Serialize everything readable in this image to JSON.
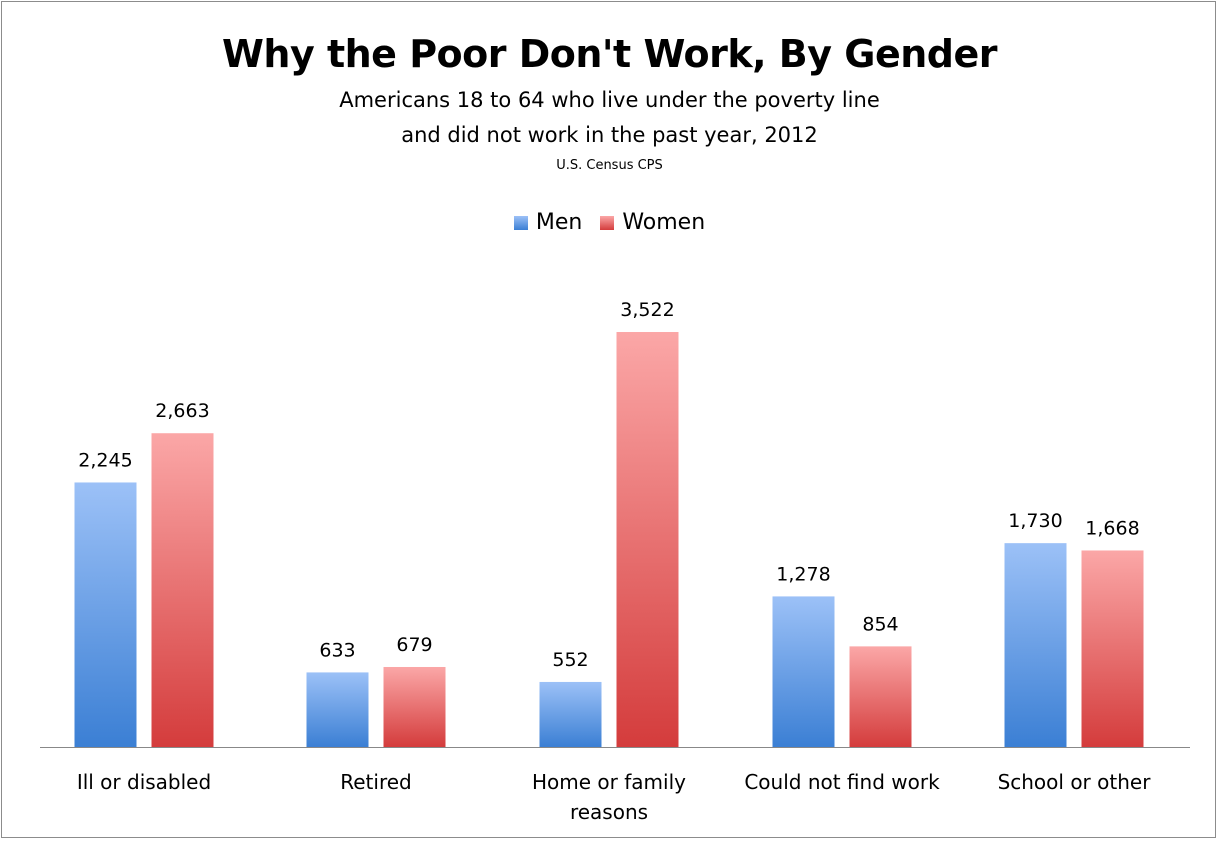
{
  "chart_data": {
    "type": "bar",
    "title": "Why the Poor Don't Work, By Gender",
    "subtitle_line1": "Americans 18 to 64 who live under the poverty line",
    "subtitle_line2": "and did not work in the past year, 2012",
    "source": "U.S. Census CPS",
    "categories": [
      [
        "Ill or disabled"
      ],
      [
        "Retired"
      ],
      [
        "Home or family",
        "reasons"
      ],
      [
        "Could not find work"
      ],
      [
        "School or other"
      ]
    ],
    "series": [
      {
        "name": "Men",
        "values": [
          2245,
          633,
          552,
          1278,
          1730
        ],
        "labels": [
          "2,245",
          "633",
          "552",
          "1,278",
          "1,730"
        ],
        "color_top": "#9cc1f7",
        "color_bottom": "#3b7fd4"
      },
      {
        "name": "Women",
        "values": [
          2663,
          679,
          3522,
          854,
          1668
        ],
        "labels": [
          "2,663",
          "679",
          "3,522",
          "854",
          "1,668"
        ],
        "color_top": "#fba7a7",
        "color_bottom": "#d43c3c"
      }
    ],
    "ylim": [
      0,
      3522
    ],
    "grid": false,
    "legend_position": "top"
  }
}
